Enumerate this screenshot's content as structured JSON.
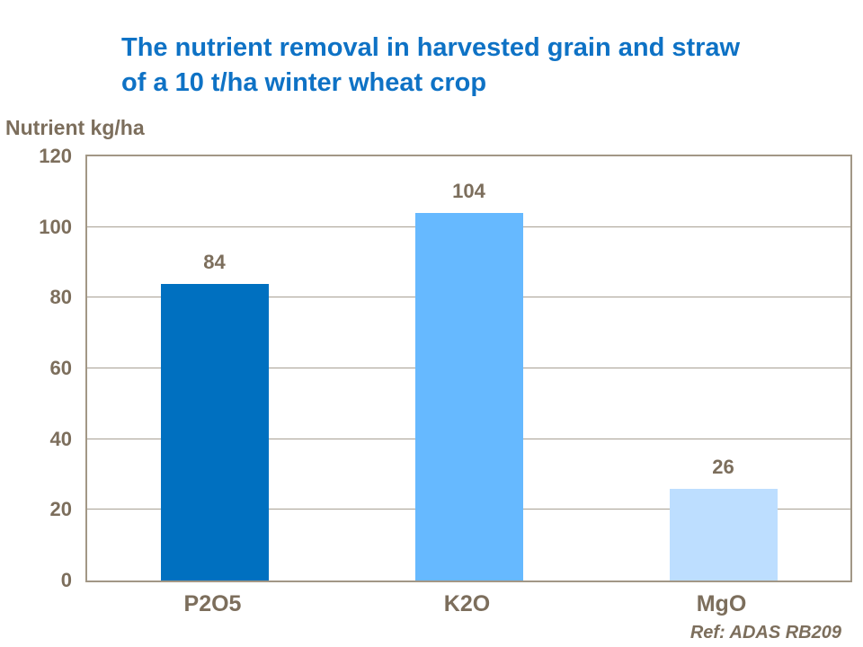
{
  "page": {
    "background_color": "#ffffff",
    "title_color": "#0e72c5",
    "text_color": "#7c6e5c",
    "axis_border_color": "#a29786",
    "gridline_color": "#a8a094"
  },
  "title": {
    "line1": "The nutrient removal in harvested grain and straw",
    "line2": "of a 10 t/ha winter wheat crop"
  },
  "ref_note": "Ref: ADAS RB209",
  "chart_data": {
    "type": "bar",
    "title": "The nutrient removal in harvested grain and straw of a 10 t/ha winter wheat crop",
    "categories": [
      "P2O5",
      "K2O",
      "MgO"
    ],
    "values": [
      84,
      104,
      26
    ],
    "data_labels": [
      "84",
      "104",
      "26"
    ],
    "bar_colors": [
      "#0070c0",
      "#66b9ff",
      "#bddeff"
    ],
    "xlabel": "",
    "ylabel": "Nutrient kg/ha",
    "ylim": [
      0,
      120
    ],
    "ytick_interval": 20,
    "ytick_labels": [
      "0",
      "20",
      "40",
      "60",
      "80",
      "100",
      "120"
    ],
    "grid": true,
    "legend": "none"
  }
}
